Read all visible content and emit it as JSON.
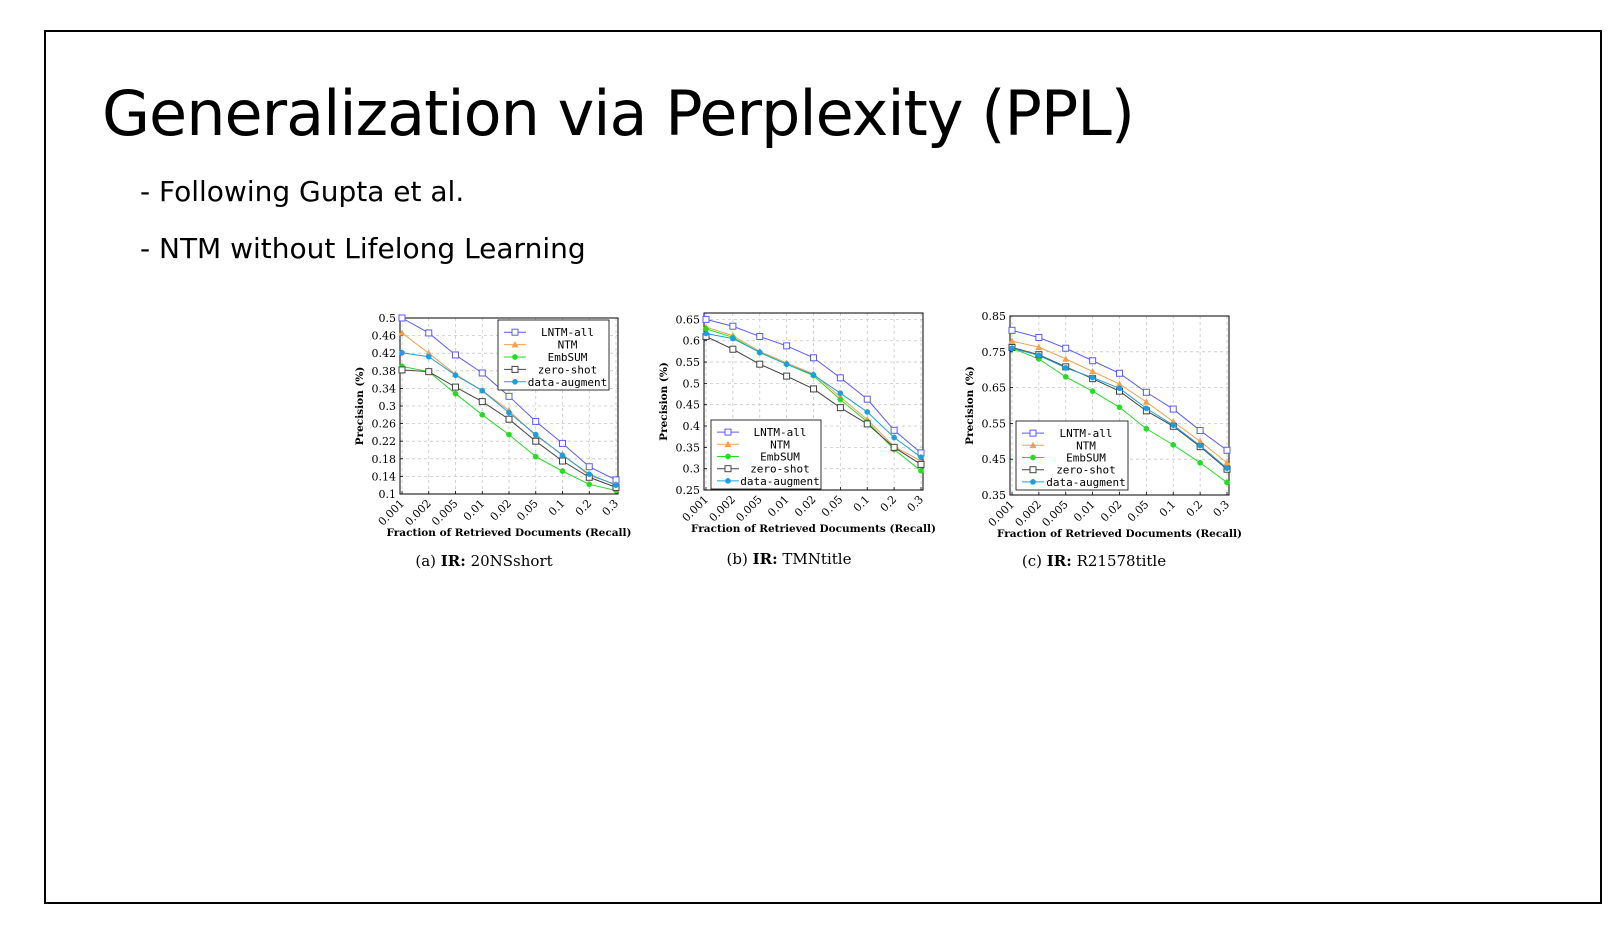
{
  "slide": {
    "title": "Generalization via Perplexity (PPL)",
    "bullets": [
      "- Following Gupta et al.",
      "- NTM without Lifelong Learning"
    ]
  },
  "series_styles": [
    {
      "name": "LNTM-all",
      "color": "#5a5aff",
      "marker": "square-open"
    },
    {
      "name": "NTM",
      "color": "#f5a050",
      "marker": "triangle"
    },
    {
      "name": "EmbSUM",
      "color": "#22dd22",
      "marker": "circle-filled"
    },
    {
      "name": "zero-shot",
      "color": "#444444",
      "marker": "square-open"
    },
    {
      "name": "data-augment",
      "color": "#1aa0e0",
      "marker": "circle-filled"
    }
  ],
  "chart_data": [
    {
      "type": "line",
      "caption_prefix": "(a) ",
      "caption_bold": "IR:",
      "caption_rest": " 20NSshort",
      "xlabel": "Fraction of Retrieved Documents (Recall)",
      "ylabel": "Precision (%)",
      "x": [
        "0.001",
        "0.002",
        "0.005",
        "0.01",
        "0.02",
        "0.05",
        "0.1",
        "0.2",
        "0.3"
      ],
      "yticks": [
        "0.1",
        "0.14",
        "0.18",
        "0.22",
        "0.26",
        "0.3",
        "0.34",
        "0.38",
        "0.42",
        "0.46",
        "0.5"
      ],
      "ylim": [
        0.1,
        0.5
      ],
      "grid": true,
      "legend_position": "top-right",
      "series": [
        {
          "name": "LNTM-all",
          "values": [
            0.5,
            0.466,
            0.416,
            0.375,
            0.322,
            0.265,
            0.215,
            0.162,
            0.132
          ]
        },
        {
          "name": "NTM",
          "values": [
            0.466,
            0.42,
            0.372,
            0.335,
            0.29,
            0.232,
            0.19,
            0.142,
            0.122
          ]
        },
        {
          "name": "EmbSUM",
          "values": [
            0.39,
            0.378,
            0.328,
            0.28,
            0.235,
            0.185,
            0.152,
            0.122,
            0.108
          ]
        },
        {
          "name": "zero-shot",
          "values": [
            0.382,
            0.378,
            0.343,
            0.31,
            0.27,
            0.22,
            0.175,
            0.138,
            0.115
          ]
        },
        {
          "name": "data-augment",
          "values": [
            0.421,
            0.412,
            0.37,
            0.335,
            0.285,
            0.235,
            0.188,
            0.145,
            0.12
          ]
        }
      ]
    },
    {
      "type": "line",
      "caption_prefix": "(b) ",
      "caption_bold": "IR:",
      "caption_rest": " TMNtitle",
      "xlabel": "Fraction of Retrieved Documents (Recall)",
      "ylabel": "Precision (%)",
      "x": [
        "0.001",
        "0.002",
        "0.005",
        "0.01",
        "0.02",
        "0.05",
        "0.1",
        "0.2",
        "0.3"
      ],
      "yticks": [
        "0.25",
        "0.3",
        "0.35",
        "0.4",
        "0.45",
        "0.5",
        "0.55",
        "0.6",
        "0.65"
      ],
      "ylim": [
        0.25,
        0.665
      ],
      "grid": true,
      "legend_position": "bottom-left",
      "series": [
        {
          "name": "LNTM-all",
          "values": [
            0.65,
            0.634,
            0.61,
            0.588,
            0.56,
            0.513,
            0.463,
            0.39,
            0.337
          ]
        },
        {
          "name": "NTM",
          "values": [
            0.632,
            0.612,
            0.575,
            0.548,
            0.522,
            0.468,
            0.415,
            0.352,
            0.318
          ]
        },
        {
          "name": "EmbSUM",
          "values": [
            0.628,
            0.608,
            0.572,
            0.545,
            0.518,
            0.462,
            0.41,
            0.345,
            0.295
          ]
        },
        {
          "name": "zero-shot",
          "values": [
            0.61,
            0.58,
            0.545,
            0.517,
            0.487,
            0.443,
            0.405,
            0.35,
            0.31
          ]
        },
        {
          "name": "data-augment",
          "values": [
            0.617,
            0.605,
            0.573,
            0.545,
            0.52,
            0.477,
            0.433,
            0.373,
            0.327
          ]
        }
      ]
    },
    {
      "type": "line",
      "caption_prefix": "(c) ",
      "caption_bold": "IR:",
      "caption_rest": " R21578title",
      "xlabel": "Fraction of Retrieved Documents (Recall)",
      "ylabel": "Precision (%)",
      "x": [
        "0.001",
        "0.002",
        "0.005",
        "0.01",
        "0.02",
        "0.05",
        "0.1",
        "0.2",
        "0.3"
      ],
      "yticks": [
        "0.35",
        "0.45",
        "0.55",
        "0.65",
        "0.75",
        "0.85"
      ],
      "ylim": [
        0.35,
        0.85
      ],
      "grid": true,
      "legend_position": "bottom-left",
      "series": [
        {
          "name": "LNTM-all",
          "values": [
            0.81,
            0.79,
            0.76,
            0.725,
            0.69,
            0.637,
            0.59,
            0.53,
            0.475
          ]
        },
        {
          "name": "NTM",
          "values": [
            0.78,
            0.763,
            0.73,
            0.695,
            0.66,
            0.61,
            0.555,
            0.5,
            0.44
          ]
        },
        {
          "name": "EmbSUM",
          "values": [
            0.76,
            0.73,
            0.68,
            0.64,
            0.595,
            0.535,
            0.49,
            0.44,
            0.385
          ]
        },
        {
          "name": "zero-shot",
          "values": [
            0.762,
            0.742,
            0.708,
            0.675,
            0.64,
            0.585,
            0.542,
            0.485,
            0.422
          ]
        },
        {
          "name": "data-augment",
          "values": [
            0.76,
            0.74,
            0.705,
            0.678,
            0.648,
            0.592,
            0.545,
            0.488,
            0.425
          ]
        }
      ]
    }
  ]
}
